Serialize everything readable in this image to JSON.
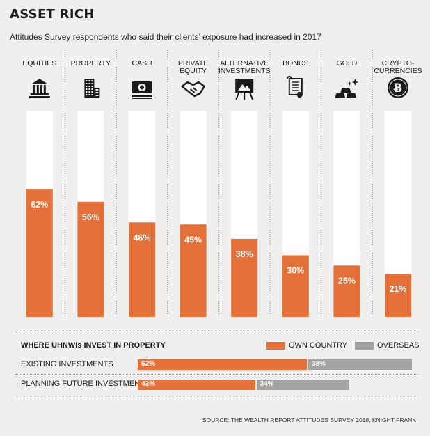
{
  "title": "ASSET RICH",
  "subtitle": "Attitudes Survey respondents who said their clients’ exposure had increased in 2017",
  "colors": {
    "background": "#f0efee",
    "own_country": "#e4703a",
    "overseas": "#a4a3a2",
    "bar_track": "#ffffff",
    "icon": "#1b1b1b"
  },
  "chart_data": [
    {
      "type": "bar",
      "title": "ASSET RICH",
      "categories": [
        "EQUITIES",
        "PROPERTY",
        "CASH",
        "PRIVATE EQUITY",
        "ALTERNATIVE INVESTMENTS",
        "BONDS",
        "GOLD",
        "CRYPTO-CURRENCIES"
      ],
      "category_label_lines": [
        [
          "EQUITIES"
        ],
        [
          "PROPERTY"
        ],
        [
          "CASH"
        ],
        [
          "PRIVATE",
          "EQUITY"
        ],
        [
          "ALTERNATIVE",
          "INVESTMENTS"
        ],
        [
          "BONDS"
        ],
        [
          "GOLD"
        ],
        [
          "CRYPTO-",
          "CURRENCIES"
        ]
      ],
      "icons": [
        "bank-icon",
        "building-icon",
        "cash-icon",
        "handshake-icon",
        "easel-icon",
        "certificate-icon",
        "gold-bars-icon",
        "bitcoin-icon"
      ],
      "values": [
        62,
        56,
        46,
        45,
        38,
        30,
        25,
        21
      ],
      "value_labels": [
        "62%",
        "56%",
        "46%",
        "45%",
        "38%",
        "30%",
        "25%",
        "21%"
      ],
      "ylim": [
        0,
        100
      ],
      "grid": false
    },
    {
      "type": "bar",
      "orientation": "horizontal",
      "stacked": true,
      "title": "WHERE UHNWIs INVEST IN PROPERTY",
      "categories": [
        "EXISTING INVESTMENTS",
        "PLANNING FUTURE INVESTMENTS"
      ],
      "series": [
        {
          "name": "OWN COUNTRY",
          "values": [
            62,
            43
          ],
          "labels": [
            "62%",
            "43%"
          ]
        },
        {
          "name": "OVERSEAS",
          "values": [
            38,
            34
          ],
          "labels": [
            "38%",
            "34%"
          ]
        }
      ],
      "legend": "top-right"
    }
  ],
  "source": "SOURCE: THE WEALTH REPORT ATTITUDES SURVEY 2018, KNIGHT FRANK"
}
